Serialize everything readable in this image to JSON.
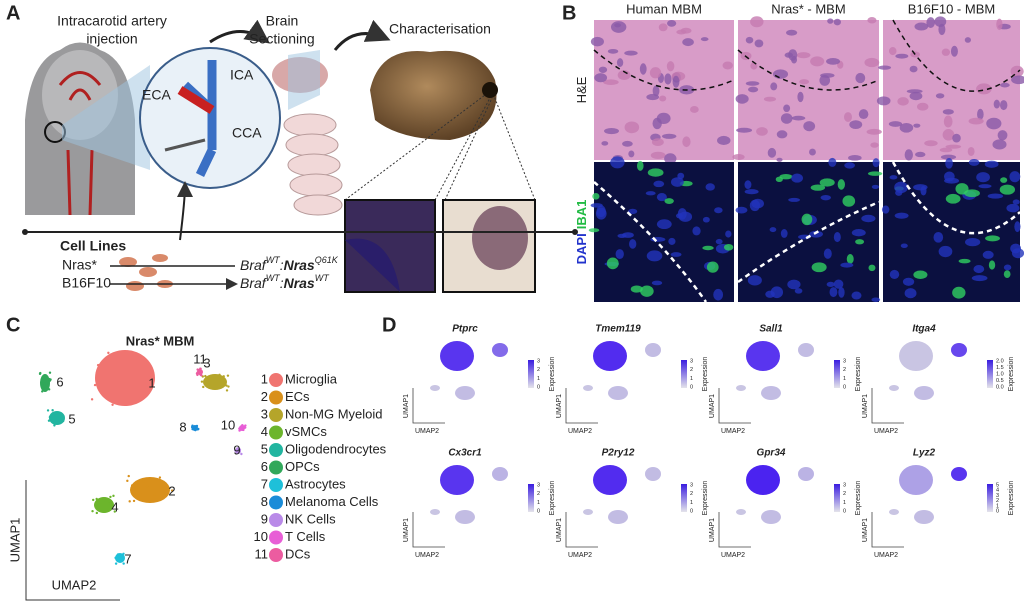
{
  "panel_a": {
    "label": "A",
    "injection_title": [
      "Intracarotid artery",
      "injection"
    ],
    "sectioning_title": [
      "Brain",
      "Sectioning"
    ],
    "characterisation_title": "Characterisation",
    "vessels": [
      "ICA",
      "ECA",
      "CCA"
    ],
    "cell_lines_title": "Cell Lines",
    "cell_lines": [
      {
        "name": "Nras*",
        "genotype": [
          {
            "t": "Braf"
          },
          {
            "t": "WT",
            "sup": true
          },
          {
            "t": ":"
          },
          {
            "t": "Nras",
            "bold": true
          },
          {
            "t": "Q61K",
            "sup": true
          }
        ]
      },
      {
        "name": "B16F10",
        "genotype": [
          {
            "t": "Braf"
          },
          {
            "t": "WT",
            "sup": true
          },
          {
            "t": ":"
          },
          {
            "t": "Nras",
            "bold": true
          },
          {
            "t": "WT",
            "sup": true
          }
        ]
      }
    ]
  },
  "panel_b": {
    "label": "B",
    "columns": [
      "Human MBM",
      "Nras* - MBM",
      "B16F10 - MBM"
    ],
    "rows": [
      {
        "parts": [
          "H&E"
        ]
      },
      {
        "parts": [
          "DAPI",
          "IBA1"
        ]
      }
    ]
  },
  "panel_c": {
    "label": "C",
    "title": "Nras* MBM",
    "x_axis": "UMAP2",
    "y_axis": "UMAP1",
    "clusters": [
      {
        "id": "1",
        "name": "Microglia",
        "color": "#f07470"
      },
      {
        "id": "2",
        "name": "ECs",
        "color": "#d9901b"
      },
      {
        "id": "3",
        "name": "Non-MG Myeloid",
        "color": "#b5a52a"
      },
      {
        "id": "4",
        "name": "vSMCs",
        "color": "#6cb52c"
      },
      {
        "id": "5",
        "name": "Oligodendrocytes",
        "color": "#22b5a0"
      },
      {
        "id": "6",
        "name": "OPCs",
        "color": "#31a85a"
      },
      {
        "id": "7",
        "name": "Astrocytes",
        "color": "#1ec0d9"
      },
      {
        "id": "8",
        "name": "Melanoma Cells",
        "color": "#1a8cd8"
      },
      {
        "id": "9",
        "name": "NK Cells",
        "color": "#b98ae8"
      },
      {
        "id": "10",
        "name": "T Cells",
        "color": "#e85ed6"
      },
      {
        "id": "11",
        "name": "DCs",
        "color": "#ec5ca0"
      }
    ]
  },
  "panel_d": {
    "label": "D",
    "colorbar_label": "Expression",
    "x_axis": "UMAP2",
    "y_axis": "UMAP1",
    "genes": [
      {
        "name": "Ptprc",
        "ticks": [
          "3",
          "2",
          "1",
          "0"
        ]
      },
      {
        "name": "Tmem119",
        "ticks": [
          "3",
          "2",
          "1",
          "0"
        ]
      },
      {
        "name": "Sall1",
        "ticks": [
          "3",
          "2",
          "1",
          "0"
        ]
      },
      {
        "name": "Itga4",
        "ticks": [
          "2.0",
          "1.5",
          "1.0",
          "0.5",
          "0.0"
        ]
      },
      {
        "name": "Cx3cr1",
        "ticks": [
          "3",
          "2",
          "1",
          "0"
        ]
      },
      {
        "name": "P2ry12",
        "ticks": [
          "3",
          "2",
          "1",
          "0"
        ]
      },
      {
        "name": "Gpr34",
        "ticks": [
          "3",
          "2",
          "1",
          "0"
        ]
      },
      {
        "name": "Lyz2",
        "ticks": [
          "5",
          "4",
          "3",
          "2",
          "1",
          "0"
        ]
      }
    ]
  }
}
